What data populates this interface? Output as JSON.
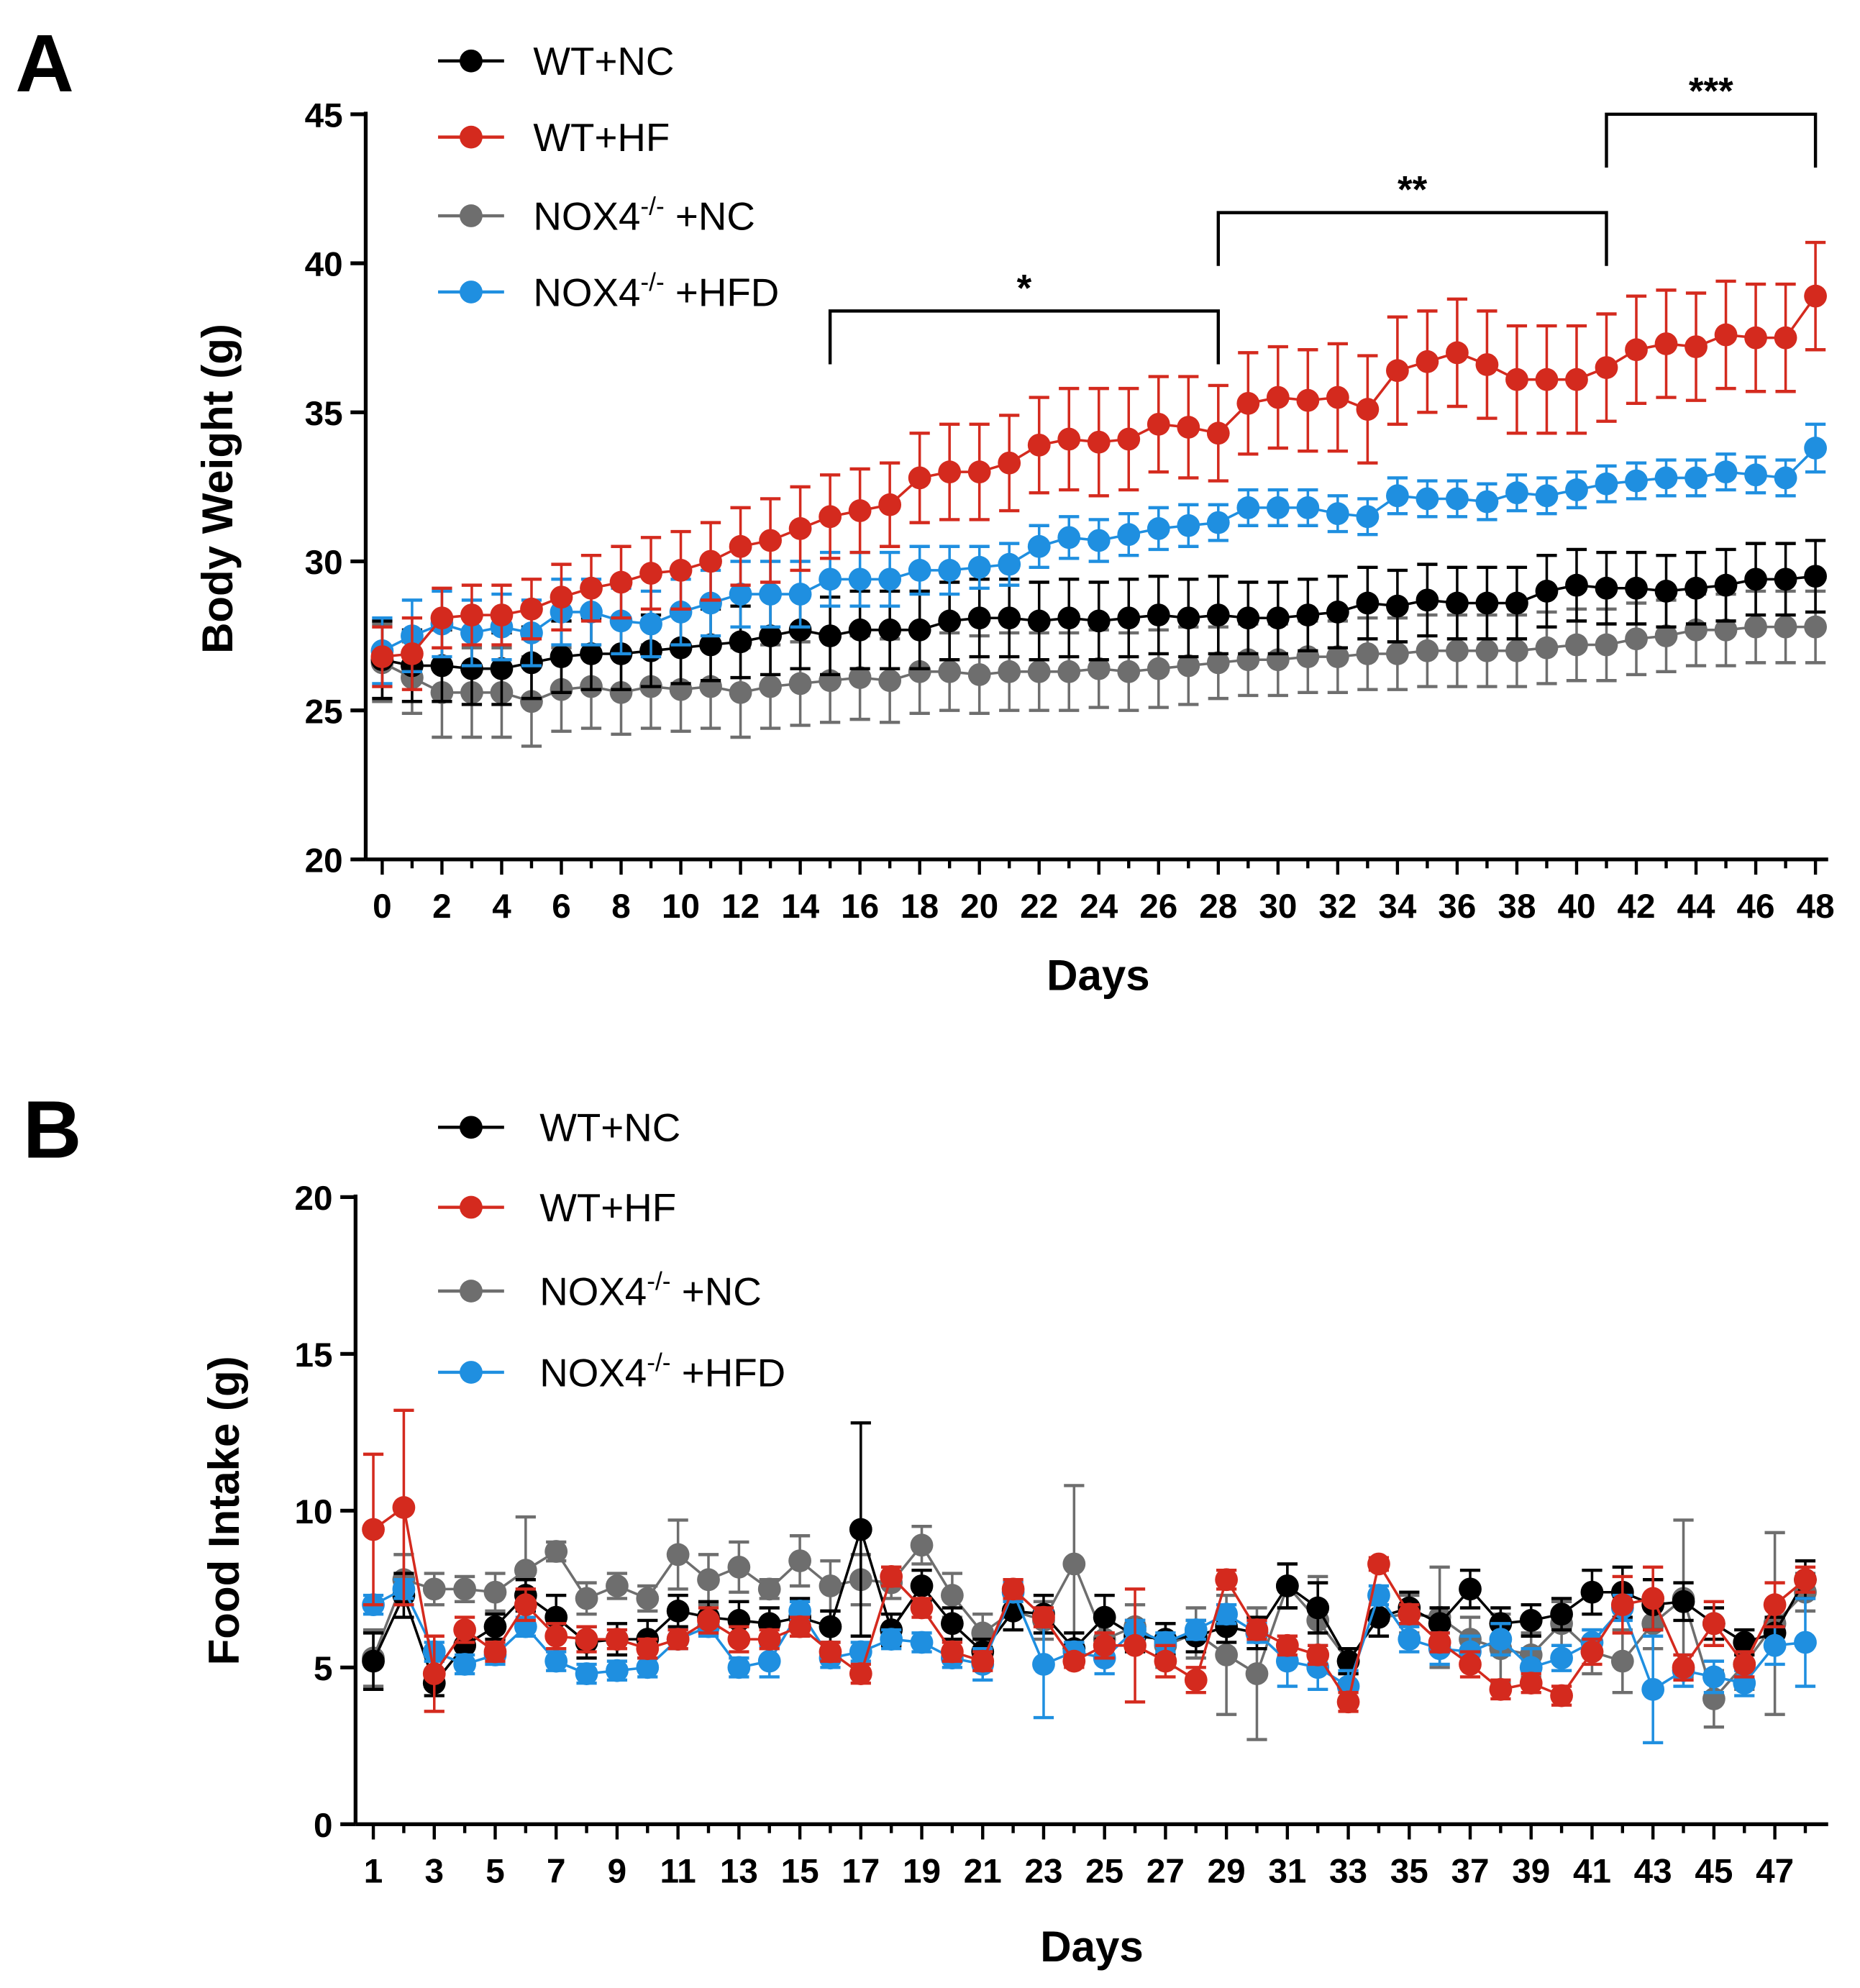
{
  "chart_data": [
    {
      "type": "line",
      "panel_label": "A",
      "xlabel": "Days",
      "ylabel": "Body Weight (g)",
      "xlim": [
        0,
        48
      ],
      "ylim": [
        20,
        45
      ],
      "x_ticks": [
        0,
        2,
        4,
        6,
        8,
        10,
        12,
        14,
        16,
        18,
        20,
        22,
        24,
        26,
        28,
        30,
        32,
        34,
        36,
        38,
        40,
        42,
        44,
        46,
        48
      ],
      "y_ticks": [
        20,
        25,
        30,
        35,
        40,
        45
      ],
      "grid": false,
      "legend_position": "top-left",
      "x": [
        0,
        1,
        2,
        3,
        4,
        5,
        6,
        7,
        8,
        9,
        10,
        11,
        12,
        13,
        14,
        15,
        16,
        17,
        18,
        19,
        20,
        21,
        22,
        23,
        24,
        25,
        26,
        27,
        28,
        29,
        30,
        31,
        32,
        33,
        34,
        35,
        36,
        37,
        38,
        39,
        40,
        41,
        42,
        43,
        44,
        45,
        46,
        47,
        48
      ],
      "series": [
        {
          "name": "NOX4",
          "sup": "-/-",
          "suffix": " +NC",
          "color": "#6e6e6e",
          "values": [
            26.6,
            26.1,
            25.6,
            25.6,
            25.6,
            25.3,
            25.7,
            25.8,
            25.6,
            25.8,
            25.7,
            25.8,
            25.6,
            25.8,
            25.9,
            26.0,
            26.1,
            26.0,
            26.3,
            26.3,
            26.2,
            26.3,
            26.3,
            26.3,
            26.4,
            26.3,
            26.4,
            26.5,
            26.6,
            26.7,
            26.7,
            26.8,
            26.8,
            26.9,
            26.9,
            27.0,
            27.0,
            27.0,
            27.0,
            27.1,
            27.2,
            27.2,
            27.4,
            27.5,
            27.7,
            27.7,
            27.8,
            27.8,
            27.8
          ],
          "error": [
            1.3,
            1.2,
            1.5,
            1.5,
            1.5,
            1.5,
            1.4,
            1.4,
            1.4,
            1.4,
            1.4,
            1.4,
            1.5,
            1.4,
            1.4,
            1.4,
            1.4,
            1.4,
            1.4,
            1.3,
            1.3,
            1.3,
            1.3,
            1.3,
            1.3,
            1.3,
            1.3,
            1.3,
            1.2,
            1.2,
            1.2,
            1.2,
            1.2,
            1.2,
            1.2,
            1.2,
            1.2,
            1.2,
            1.2,
            1.2,
            1.2,
            1.2,
            1.2,
            1.2,
            1.2,
            1.2,
            1.2,
            1.2,
            1.2
          ]
        },
        {
          "name": "WT+NC",
          "color": "#000000",
          "values": [
            26.7,
            26.5,
            26.5,
            26.4,
            26.4,
            26.6,
            26.8,
            26.9,
            26.9,
            27.0,
            27.1,
            27.2,
            27.3,
            27.5,
            27.7,
            27.5,
            27.7,
            27.7,
            27.7,
            28.0,
            28.1,
            28.1,
            28.0,
            28.1,
            28.0,
            28.1,
            28.2,
            28.1,
            28.2,
            28.1,
            28.1,
            28.2,
            28.3,
            28.6,
            28.5,
            28.7,
            28.6,
            28.6,
            28.6,
            29.0,
            29.2,
            29.1,
            29.1,
            29.0,
            29.1,
            29.2,
            29.4,
            29.4,
            29.5
          ],
          "error": [
            1.3,
            1.2,
            1.2,
            1.2,
            1.2,
            1.2,
            1.2,
            1.2,
            1.2,
            1.2,
            1.2,
            1.2,
            1.2,
            1.3,
            1.3,
            1.3,
            1.3,
            1.3,
            1.3,
            1.3,
            1.3,
            1.3,
            1.3,
            1.3,
            1.3,
            1.3,
            1.3,
            1.3,
            1.3,
            1.2,
            1.2,
            1.2,
            1.2,
            1.2,
            1.2,
            1.2,
            1.2,
            1.2,
            1.2,
            1.2,
            1.2,
            1.2,
            1.2,
            1.2,
            1.2,
            1.2,
            1.2,
            1.2,
            1.2
          ]
        },
        {
          "name": "NOX4",
          "sup": "-/-",
          "suffix": " +HFD",
          "color": "#1f8fe0",
          "values": [
            27.0,
            27.5,
            27.9,
            27.6,
            27.8,
            27.6,
            28.3,
            28.3,
            28.0,
            27.9,
            28.3,
            28.6,
            28.9,
            28.9,
            28.9,
            29.4,
            29.4,
            29.4,
            29.7,
            29.7,
            29.8,
            29.9,
            30.5,
            30.8,
            30.7,
            30.9,
            31.1,
            31.2,
            31.3,
            31.8,
            31.8,
            31.8,
            31.6,
            31.5,
            32.2,
            32.1,
            32.1,
            32.0,
            32.3,
            32.2,
            32.4,
            32.6,
            32.7,
            32.8,
            32.8,
            33.0,
            32.9,
            32.8,
            33.8
          ],
          "error": [
            1.1,
            1.2,
            1.1,
            1.1,
            1.1,
            1.1,
            1.1,
            1.1,
            1.1,
            1.1,
            1.1,
            1.1,
            1.1,
            1.1,
            1.1,
            0.9,
            0.9,
            0.9,
            0.8,
            0.8,
            0.7,
            0.7,
            0.7,
            0.7,
            0.7,
            0.7,
            0.7,
            0.7,
            0.6,
            0.6,
            0.6,
            0.6,
            0.6,
            0.6,
            0.6,
            0.6,
            0.6,
            0.6,
            0.6,
            0.6,
            0.6,
            0.6,
            0.6,
            0.6,
            0.6,
            0.6,
            0.6,
            0.6,
            0.8
          ]
        },
        {
          "name": "WT+HF",
          "color": "#d42a1e",
          "values": [
            26.8,
            26.9,
            28.1,
            28.2,
            28.2,
            28.4,
            28.8,
            29.1,
            29.3,
            29.6,
            29.7,
            30.0,
            30.5,
            30.7,
            31.1,
            31.5,
            31.7,
            31.9,
            32.8,
            33.0,
            33.0,
            33.3,
            33.9,
            34.1,
            34.0,
            34.1,
            34.6,
            34.5,
            34.3,
            35.3,
            35.5,
            35.4,
            35.5,
            35.1,
            36.4,
            36.7,
            37.0,
            36.6,
            36.1,
            36.1,
            36.1,
            36.5,
            37.1,
            37.3,
            37.2,
            37.6,
            37.5,
            37.5,
            38.9
          ],
          "error": [
            1.0,
            1.2,
            1.0,
            1.0,
            1.0,
            1.0,
            1.1,
            1.1,
            1.2,
            1.2,
            1.3,
            1.3,
            1.3,
            1.4,
            1.4,
            1.4,
            1.4,
            1.4,
            1.5,
            1.6,
            1.6,
            1.6,
            1.6,
            1.7,
            1.8,
            1.7,
            1.6,
            1.7,
            1.6,
            1.7,
            1.7,
            1.7,
            1.8,
            1.8,
            1.8,
            1.7,
            1.8,
            1.8,
            1.8,
            1.8,
            1.8,
            1.8,
            1.8,
            1.8,
            1.8,
            1.8,
            1.8,
            1.8,
            1.8
          ]
        }
      ],
      "significance": [
        {
          "label": "*",
          "from": 15,
          "to": 28
        },
        {
          "label": "**",
          "from": 28,
          "to": 41
        },
        {
          "label": "***",
          "from": 41,
          "to": 48
        }
      ]
    },
    {
      "type": "line",
      "panel_label": "B",
      "xlabel": "Days",
      "ylabel": "Food Intake (g)",
      "xlim": [
        1,
        48
      ],
      "ylim": [
        0,
        20
      ],
      "x_ticks": [
        1,
        3,
        5,
        7,
        9,
        11,
        13,
        15,
        17,
        19,
        21,
        23,
        25,
        27,
        29,
        31,
        33,
        35,
        37,
        39,
        41,
        43,
        45,
        47
      ],
      "y_ticks": [
        0,
        5,
        10,
        15,
        20
      ],
      "grid": false,
      "legend_position": "top-left",
      "x": [
        1,
        2,
        3,
        4,
        5,
        6,
        7,
        8,
        9,
        10,
        11,
        12,
        13,
        14,
        15,
        16,
        17,
        18,
        19,
        20,
        21,
        22,
        23,
        24,
        25,
        26,
        27,
        28,
        29,
        30,
        31,
        32,
        33,
        34,
        35,
        36,
        37,
        38,
        39,
        40,
        41,
        42,
        43,
        44,
        45,
        46,
        47,
        48
      ],
      "series": [
        {
          "name": "NOX4",
          "sup": "-/-",
          "suffix": " +NC",
          "color": "#6e6e6e",
          "values": [
            5.3,
            7.8,
            7.5,
            7.5,
            7.4,
            8.1,
            8.7,
            7.2,
            7.6,
            7.2,
            8.6,
            7.8,
            8.2,
            7.5,
            8.4,
            7.6,
            7.8,
            7.7,
            8.9,
            7.3,
            6.1,
            6.8,
            6.5,
            8.3,
            5.9,
            6.3,
            5.7,
            6.1,
            5.4,
            4.8,
            7.6,
            6.5,
            5.2,
            6.6,
            6.7,
            6.6,
            5.9,
            5.6,
            5.4,
            6.4,
            5.5,
            5.2,
            6.4,
            7.2,
            4.0,
            5.1,
            6.4,
            7.4
          ],
          "error": [
            0.9,
            0.8,
            0.5,
            0.4,
            0.6,
            1.7,
            0.3,
            0.5,
            0.4,
            0.4,
            1.1,
            0.8,
            0.8,
            0.3,
            0.8,
            0.8,
            0.8,
            0.5,
            0.6,
            0.7,
            0.6,
            0.6,
            0.6,
            2.5,
            0.6,
            0.7,
            0.7,
            0.8,
            1.9,
            2.1,
            0.7,
            1.4,
            0.4,
            0.6,
            0.6,
            1.6,
            0.7,
            1.1,
            0.7,
            0.7,
            0.7,
            1.0,
            0.8,
            2.5,
            0.9,
            0.8,
            2.9,
            0.6
          ]
        },
        {
          "name": "WT+NC",
          "color": "#000000",
          "values": [
            5.2,
            7.3,
            4.5,
            5.7,
            6.3,
            7.3,
            6.6,
            5.8,
            5.9,
            5.9,
            6.8,
            6.6,
            6.5,
            6.4,
            6.6,
            6.3,
            9.4,
            6.2,
            7.6,
            6.4,
            5.5,
            6.8,
            6.7,
            5.6,
            6.6,
            6.0,
            5.9,
            6.0,
            6.3,
            6.1,
            7.6,
            6.9,
            5.2,
            6.6,
            6.9,
            6.4,
            7.5,
            6.4,
            6.5,
            6.7,
            7.4,
            7.4,
            7.0,
            7.1,
            6.4,
            5.8,
            6.1,
            7.8
          ],
          "error": [
            0.9,
            0.7,
            0.4,
            0.5,
            0.4,
            0.5,
            0.7,
            0.5,
            0.5,
            0.6,
            0.5,
            0.5,
            0.6,
            0.5,
            0.6,
            0.5,
            3.4,
            0.5,
            0.5,
            0.5,
            0.4,
            0.6,
            0.6,
            0.5,
            0.7,
            0.5,
            0.5,
            0.5,
            0.5,
            0.5,
            0.7,
            0.8,
            0.4,
            0.6,
            0.5,
            0.5,
            0.6,
            0.5,
            0.5,
            0.5,
            0.7,
            0.8,
            0.8,
            0.6,
            0.5,
            0.4,
            0.5,
            0.6
          ]
        },
        {
          "name": "NOX4",
          "sup": "-/-",
          "suffix": " +HFD",
          "color": "#1f8fe0",
          "values": [
            7.0,
            7.5,
            5.5,
            5.1,
            5.4,
            6.3,
            5.2,
            4.8,
            4.9,
            5.0,
            5.9,
            6.3,
            5.0,
            5.2,
            6.8,
            5.3,
            5.5,
            5.9,
            5.8,
            5.3,
            5.1,
            7.4,
            5.1,
            5.5,
            5.3,
            6.2,
            5.8,
            6.2,
            6.7,
            6.1,
            5.2,
            5.0,
            4.4,
            7.3,
            5.9,
            5.6,
            5.5,
            5.9,
            5.0,
            5.3,
            5.8,
            6.9,
            4.3,
            4.9,
            4.7,
            4.5,
            5.7,
            5.8
          ],
          "error": [
            0.3,
            0.3,
            0.3,
            0.3,
            0.3,
            0.3,
            0.3,
            0.3,
            0.3,
            0.3,
            0.3,
            0.3,
            0.3,
            0.5,
            0.3,
            0.3,
            0.3,
            0.3,
            0.3,
            0.3,
            0.5,
            0.3,
            1.7,
            0.3,
            0.5,
            0.3,
            0.3,
            0.3,
            0.3,
            0.3,
            0.8,
            0.7,
            0.5,
            0.3,
            0.4,
            0.5,
            0.5,
            0.5,
            0.6,
            0.4,
            0.4,
            0.4,
            1.7,
            0.5,
            0.5,
            0.4,
            0.6,
            1.4
          ]
        },
        {
          "name": "WT+HF",
          "color": "#d42a1e",
          "values": [
            9.4,
            10.1,
            4.8,
            6.2,
            5.5,
            7.0,
            6.0,
            5.9,
            5.9,
            5.6,
            5.9,
            6.5,
            5.9,
            5.9,
            6.3,
            5.5,
            4.8,
            7.9,
            6.9,
            5.5,
            5.2,
            7.5,
            6.6,
            5.2,
            5.7,
            5.7,
            5.2,
            4.6,
            7.8,
            6.2,
            5.7,
            5.4,
            3.9,
            8.3,
            6.7,
            5.8,
            5.1,
            4.3,
            4.5,
            4.1,
            5.5,
            7.0,
            7.2,
            5.0,
            6.4,
            5.1,
            7.0,
            7.8
          ],
          "error": [
            2.4,
            3.1,
            1.2,
            0.4,
            0.3,
            0.5,
            0.4,
            0.4,
            0.3,
            0.3,
            0.3,
            0.4,
            0.4,
            0.3,
            0.3,
            0.3,
            0.3,
            0.3,
            0.3,
            0.3,
            0.3,
            0.3,
            0.3,
            0.2,
            0.4,
            1.8,
            0.5,
            0.4,
            0.3,
            0.3,
            0.3,
            0.3,
            0.3,
            0.2,
            0.3,
            0.3,
            0.4,
            0.3,
            0.3,
            0.3,
            0.4,
            0.9,
            1.0,
            0.4,
            0.7,
            0.4,
            0.7,
            0.4
          ]
        }
      ]
    }
  ]
}
